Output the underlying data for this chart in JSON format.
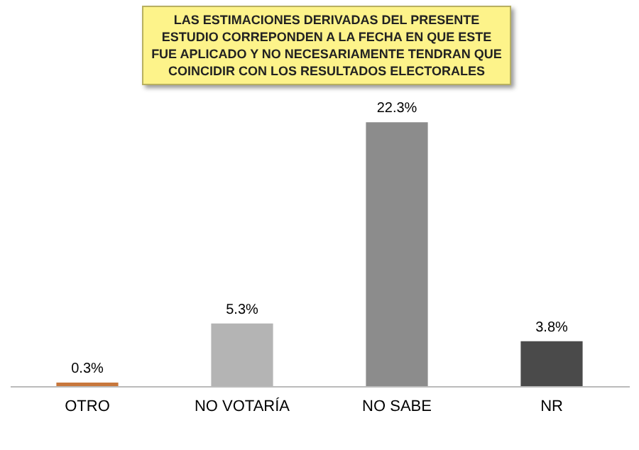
{
  "chart_data": {
    "type": "bar",
    "title": "LAS ESTIMACIONES DERIVADAS DEL PRESENTE ESTUDIO CORREPONDEN A LA FECHA EN QUE ESTE FUE APLICADO Y NO NECESARIAMENTE TENDRAN QUE COINCIDIR CON LOS RESULTADOS ELECTORALES",
    "categories": [
      "OTRO",
      "NO VOTARÍA",
      "NO SABE",
      "NR"
    ],
    "values": [
      0.3,
      5.3,
      22.3,
      3.8
    ],
    "colors": [
      "#c8773c",
      "#b4b4b4",
      "#8c8c8c",
      "#4a4a4a"
    ],
    "value_labels": [
      "0.3%",
      "5.3%",
      "22.3%",
      "3.8%"
    ]
  }
}
